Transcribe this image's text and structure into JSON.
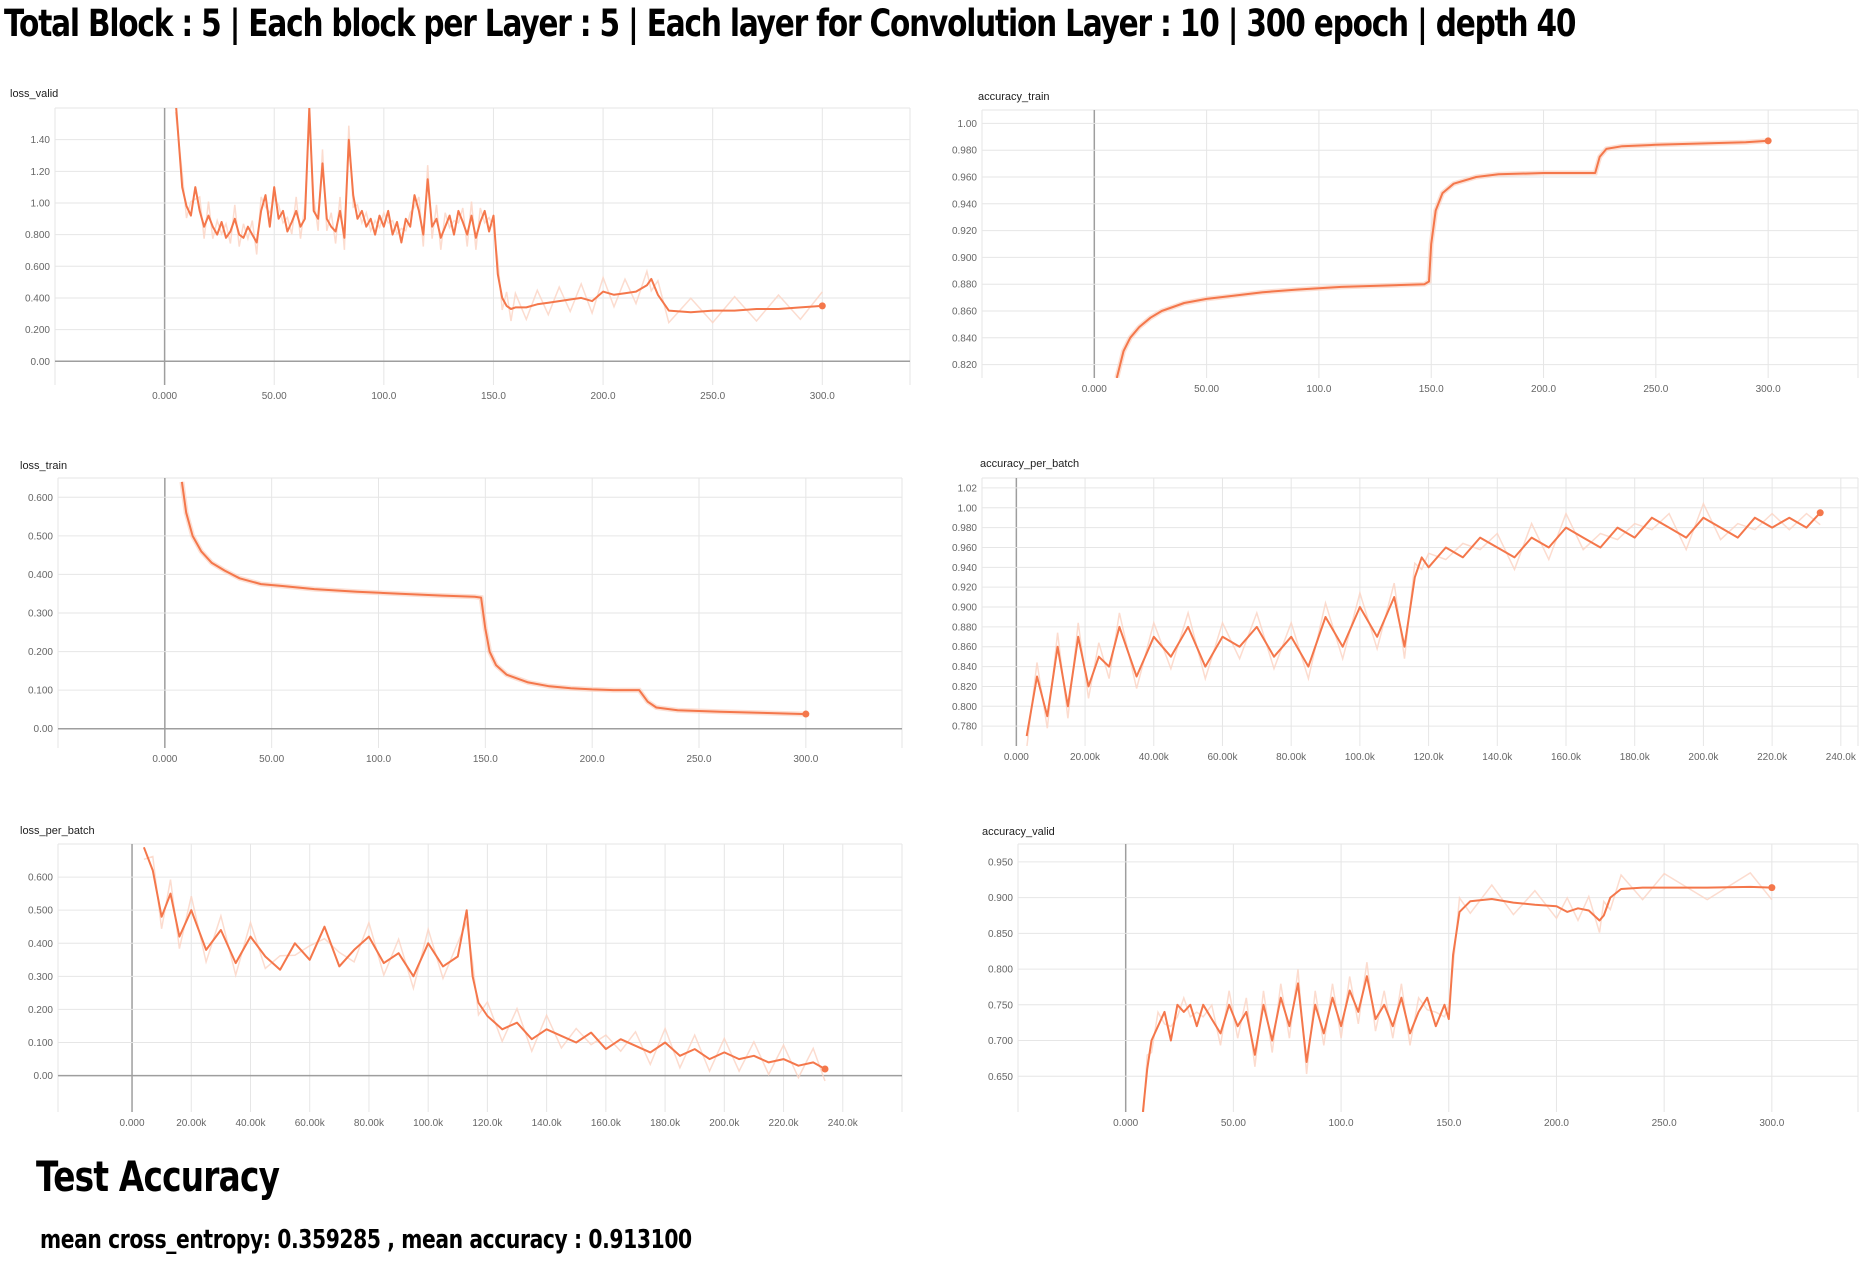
{
  "page": {
    "title": "Total Block : 5 | Each block per Layer : 5 | Each layer for  Convolution Layer : 10 | 300 epoch | depth 40",
    "test_heading": "Test Accuracy",
    "test_result": "mean cross_entropy: 0.359285 , mean accuracy : 0.913100"
  },
  "colors": {
    "line": "#f4774b",
    "raw_line": "#fbd3c3",
    "grid": "#e6e6e6",
    "axis": "#9e9e9e",
    "tick_text": "#666666"
  },
  "chart_data": [
    {
      "id": "loss_valid",
      "label": "loss_valid",
      "type": "line",
      "xlim": [
        -50,
        340
      ],
      "ylim": [
        -0.15,
        1.6
      ],
      "xticks": [
        0,
        50,
        100,
        150,
        200,
        250,
        300
      ],
      "xtick_labels": [
        "0.000",
        "50.00",
        "100.0",
        "150.0",
        "200.0",
        "250.0",
        "300.0"
      ],
      "yticks": [
        0,
        0.2,
        0.4,
        0.6,
        0.8,
        1.0,
        1.2,
        1.4
      ],
      "ytick_labels": [
        "0.00",
        "0.200",
        "0.400",
        "0.600",
        "0.800",
        "1.00",
        "1.20",
        "1.40"
      ],
      "x": [
        5,
        8,
        10,
        12,
        14,
        16,
        18,
        20,
        22,
        24,
        26,
        28,
        30,
        32,
        34,
        36,
        38,
        40,
        42,
        44,
        46,
        48,
        50,
        52,
        54,
        56,
        58,
        60,
        62,
        64,
        66,
        68,
        70,
        72,
        74,
        76,
        78,
        80,
        82,
        84,
        86,
        88,
        90,
        92,
        94,
        96,
        98,
        100,
        102,
        104,
        106,
        108,
        110,
        112,
        114,
        116,
        118,
        120,
        122,
        124,
        126,
        128,
        130,
        132,
        134,
        136,
        138,
        140,
        142,
        144,
        146,
        148,
        150,
        152,
        154,
        156,
        158,
        160,
        165,
        170,
        175,
        180,
        185,
        190,
        195,
        200,
        205,
        210,
        215,
        220,
        222,
        225,
        230,
        240,
        250,
        260,
        270,
        280,
        290,
        300
      ],
      "y": [
        1.65,
        1.1,
        0.98,
        0.92,
        1.1,
        0.95,
        0.85,
        0.92,
        0.85,
        0.8,
        0.88,
        0.78,
        0.82,
        0.9,
        0.8,
        0.78,
        0.85,
        0.8,
        0.75,
        0.95,
        1.05,
        0.85,
        1.1,
        0.9,
        0.95,
        0.82,
        0.88,
        0.95,
        0.85,
        0.9,
        1.6,
        0.95,
        0.9,
        1.25,
        0.9,
        0.85,
        0.82,
        0.95,
        0.78,
        1.4,
        1.05,
        0.9,
        0.95,
        0.85,
        0.9,
        0.8,
        0.92,
        0.85,
        0.95,
        0.8,
        0.88,
        0.75,
        0.9,
        0.85,
        1.05,
        0.95,
        0.8,
        1.15,
        0.85,
        0.9,
        0.78,
        0.85,
        0.92,
        0.8,
        0.95,
        0.88,
        0.8,
        0.92,
        0.78,
        0.88,
        0.95,
        0.82,
        0.92,
        0.55,
        0.4,
        0.35,
        0.33,
        0.34,
        0.34,
        0.36,
        0.37,
        0.38,
        0.39,
        0.4,
        0.38,
        0.44,
        0.42,
        0.43,
        0.44,
        0.48,
        0.52,
        0.42,
        0.32,
        0.31,
        0.32,
        0.32,
        0.33,
        0.33,
        0.34,
        0.35
      ],
      "smooth": true
    },
    {
      "id": "accuracy_train",
      "label": "accuracy_train",
      "type": "line",
      "xlim": [
        -50,
        340
      ],
      "ylim": [
        0.81,
        1.01
      ],
      "xticks": [
        0,
        50,
        100,
        150,
        200,
        250,
        300
      ],
      "xtick_labels": [
        "0.000",
        "50.00",
        "100.0",
        "150.0",
        "200.0",
        "250.0",
        "300.0"
      ],
      "yticks": [
        0.82,
        0.84,
        0.86,
        0.88,
        0.9,
        0.92,
        0.94,
        0.96,
        0.98,
        1.0
      ],
      "ytick_labels": [
        "0.820",
        "0.840",
        "0.860",
        "0.880",
        "0.900",
        "0.920",
        "0.940",
        "0.960",
        "0.980",
        "1.00"
      ],
      "x": [
        10,
        13,
        16,
        20,
        25,
        30,
        40,
        50,
        60,
        75,
        90,
        110,
        130,
        147,
        149,
        150,
        152,
        155,
        160,
        170,
        180,
        200,
        215,
        223,
        225,
        228,
        235,
        250,
        270,
        290,
        300
      ],
      "y": [
        0.81,
        0.83,
        0.84,
        0.848,
        0.855,
        0.86,
        0.866,
        0.869,
        0.871,
        0.874,
        0.876,
        0.878,
        0.879,
        0.88,
        0.882,
        0.91,
        0.935,
        0.948,
        0.955,
        0.96,
        0.962,
        0.963,
        0.963,
        0.963,
        0.975,
        0.981,
        0.983,
        0.984,
        0.985,
        0.986,
        0.987
      ],
      "smooth": false
    },
    {
      "id": "loss_train",
      "label": "loss_train",
      "type": "line",
      "xlim": [
        -50,
        345
      ],
      "ylim": [
        -0.05,
        0.65
      ],
      "xticks": [
        0,
        50,
        100,
        150,
        200,
        250,
        300
      ],
      "xtick_labels": [
        "0.000",
        "50.00",
        "100.0",
        "150.0",
        "200.0",
        "250.0",
        "300.0"
      ],
      "yticks": [
        0,
        0.1,
        0.2,
        0.3,
        0.4,
        0.5,
        0.6
      ],
      "ytick_labels": [
        "0.00",
        "0.100",
        "0.200",
        "0.300",
        "0.400",
        "0.500",
        "0.600"
      ],
      "x": [
        8,
        10,
        13,
        17,
        22,
        28,
        35,
        45,
        55,
        70,
        90,
        110,
        130,
        145,
        148,
        150,
        152,
        155,
        160,
        170,
        180,
        190,
        200,
        210,
        222,
        226,
        230,
        240,
        260,
        280,
        300
      ],
      "y": [
        0.64,
        0.56,
        0.5,
        0.46,
        0.43,
        0.41,
        0.39,
        0.375,
        0.37,
        0.362,
        0.355,
        0.35,
        0.345,
        0.342,
        0.34,
        0.26,
        0.2,
        0.165,
        0.14,
        0.12,
        0.11,
        0.105,
        0.102,
        0.1,
        0.1,
        0.07,
        0.055,
        0.048,
        0.044,
        0.041,
        0.038
      ],
      "smooth": false
    },
    {
      "id": "accuracy_per_batch",
      "label": "accuracy_per_batch",
      "type": "line",
      "xlim": [
        -10000,
        245000
      ],
      "ylim": [
        0.76,
        1.03
      ],
      "xticks": [
        0,
        20000,
        40000,
        60000,
        80000,
        100000,
        120000,
        140000,
        160000,
        180000,
        200000,
        220000,
        240000
      ],
      "xtick_labels": [
        "0.000",
        "20.00k",
        "40.00k",
        "60.00k",
        "80.00k",
        "100.0k",
        "120.0k",
        "140.0k",
        "160.0k",
        "180.0k",
        "200.0k",
        "220.0k",
        "240.0k"
      ],
      "yticks": [
        0.78,
        0.8,
        0.82,
        0.84,
        0.86,
        0.88,
        0.9,
        0.92,
        0.94,
        0.96,
        0.98,
        1.0,
        1.02
      ],
      "ytick_labels": [
        "0.780",
        "0.800",
        "0.820",
        "0.840",
        "0.860",
        "0.880",
        "0.900",
        "0.920",
        "0.940",
        "0.960",
        "0.980",
        "1.00",
        "1.02"
      ],
      "x": [
        3000,
        6000,
        9000,
        12000,
        15000,
        18000,
        21000,
        24000,
        27000,
        30000,
        35000,
        40000,
        45000,
        50000,
        55000,
        60000,
        65000,
        70000,
        75000,
        80000,
        85000,
        90000,
        95000,
        100000,
        105000,
        110000,
        113000,
        116000,
        118000,
        120000,
        125000,
        130000,
        135000,
        140000,
        145000,
        150000,
        155000,
        160000,
        165000,
        170000,
        175000,
        180000,
        185000,
        190000,
        195000,
        200000,
        205000,
        210000,
        215000,
        220000,
        225000,
        230000,
        234000
      ],
      "y": [
        0.77,
        0.83,
        0.79,
        0.86,
        0.8,
        0.87,
        0.82,
        0.85,
        0.84,
        0.88,
        0.83,
        0.87,
        0.85,
        0.88,
        0.84,
        0.87,
        0.86,
        0.88,
        0.85,
        0.87,
        0.84,
        0.89,
        0.86,
        0.9,
        0.87,
        0.91,
        0.86,
        0.93,
        0.95,
        0.94,
        0.96,
        0.95,
        0.97,
        0.96,
        0.95,
        0.97,
        0.96,
        0.98,
        0.97,
        0.96,
        0.98,
        0.97,
        0.99,
        0.98,
        0.97,
        0.99,
        0.98,
        0.97,
        0.99,
        0.98,
        0.99,
        0.98,
        0.995
      ],
      "smooth": true
    },
    {
      "id": "loss_per_batch",
      "label": "loss_per_batch",
      "type": "line",
      "xlim": [
        -25000,
        260000
      ],
      "ylim": [
        -0.11,
        0.7
      ],
      "xticks": [
        0,
        20000,
        40000,
        60000,
        80000,
        100000,
        120000,
        140000,
        160000,
        180000,
        200000,
        220000,
        240000
      ],
      "xtick_labels": [
        "0.000",
        "20.00k",
        "40.00k",
        "60.00k",
        "80.00k",
        "100.0k",
        "120.0k",
        "140.0k",
        "160.0k",
        "180.0k",
        "200.0k",
        "220.0k",
        "240.0k"
      ],
      "yticks": [
        0,
        0.1,
        0.2,
        0.3,
        0.4,
        0.5,
        0.6
      ],
      "ytick_labels": [
        "0.00",
        "0.100",
        "0.200",
        "0.300",
        "0.400",
        "0.500",
        "0.600"
      ],
      "x": [
        4000,
        7000,
        10000,
        13000,
        16000,
        20000,
        25000,
        30000,
        35000,
        40000,
        45000,
        50000,
        55000,
        60000,
        65000,
        70000,
        75000,
        80000,
        85000,
        90000,
        95000,
        100000,
        105000,
        110000,
        113000,
        115000,
        117000,
        120000,
        125000,
        130000,
        135000,
        140000,
        145000,
        150000,
        155000,
        160000,
        165000,
        170000,
        175000,
        180000,
        185000,
        190000,
        195000,
        200000,
        205000,
        210000,
        215000,
        220000,
        225000,
        230000,
        234000
      ],
      "y": [
        0.69,
        0.62,
        0.48,
        0.55,
        0.42,
        0.5,
        0.38,
        0.44,
        0.34,
        0.42,
        0.36,
        0.32,
        0.4,
        0.35,
        0.45,
        0.33,
        0.38,
        0.42,
        0.34,
        0.37,
        0.3,
        0.4,
        0.33,
        0.36,
        0.5,
        0.3,
        0.22,
        0.18,
        0.14,
        0.16,
        0.11,
        0.14,
        0.12,
        0.1,
        0.13,
        0.08,
        0.11,
        0.09,
        0.07,
        0.1,
        0.06,
        0.08,
        0.05,
        0.07,
        0.05,
        0.06,
        0.04,
        0.05,
        0.03,
        0.04,
        0.02
      ],
      "smooth": true
    },
    {
      "id": "accuracy_valid",
      "label": "accuracy_valid",
      "type": "line",
      "xlim": [
        -50,
        340
      ],
      "ylim": [
        0.6,
        0.975
      ],
      "xticks": [
        0,
        50,
        100,
        150,
        200,
        250,
        300
      ],
      "xtick_labels": [
        "0.000",
        "50.00",
        "100.0",
        "150.0",
        "200.0",
        "250.0",
        "300.0"
      ],
      "yticks": [
        0.65,
        0.7,
        0.75,
        0.8,
        0.85,
        0.9,
        0.95
      ],
      "ytick_labels": [
        "0.650",
        "0.700",
        "0.750",
        "0.800",
        "0.850",
        "0.900",
        "0.950"
      ],
      "x": [
        8,
        10,
        12,
        15,
        18,
        21,
        24,
        27,
        30,
        33,
        36,
        40,
        44,
        48,
        52,
        56,
        60,
        64,
        68,
        72,
        76,
        80,
        84,
        88,
        92,
        96,
        100,
        104,
        108,
        112,
        116,
        120,
        124,
        128,
        132,
        136,
        140,
        144,
        148,
        150,
        152,
        155,
        160,
        170,
        180,
        190,
        200,
        205,
        210,
        215,
        220,
        222,
        225,
        230,
        240,
        250,
        270,
        290,
        300
      ],
      "y": [
        0.6,
        0.66,
        0.7,
        0.72,
        0.74,
        0.7,
        0.75,
        0.74,
        0.75,
        0.72,
        0.75,
        0.73,
        0.71,
        0.75,
        0.72,
        0.74,
        0.68,
        0.75,
        0.7,
        0.76,
        0.72,
        0.78,
        0.67,
        0.75,
        0.71,
        0.76,
        0.72,
        0.77,
        0.74,
        0.79,
        0.73,
        0.75,
        0.72,
        0.76,
        0.71,
        0.74,
        0.76,
        0.72,
        0.75,
        0.73,
        0.82,
        0.88,
        0.895,
        0.898,
        0.893,
        0.89,
        0.888,
        0.88,
        0.885,
        0.882,
        0.868,
        0.875,
        0.9,
        0.912,
        0.914,
        0.914,
        0.914,
        0.915,
        0.914
      ],
      "smooth": true
    }
  ]
}
